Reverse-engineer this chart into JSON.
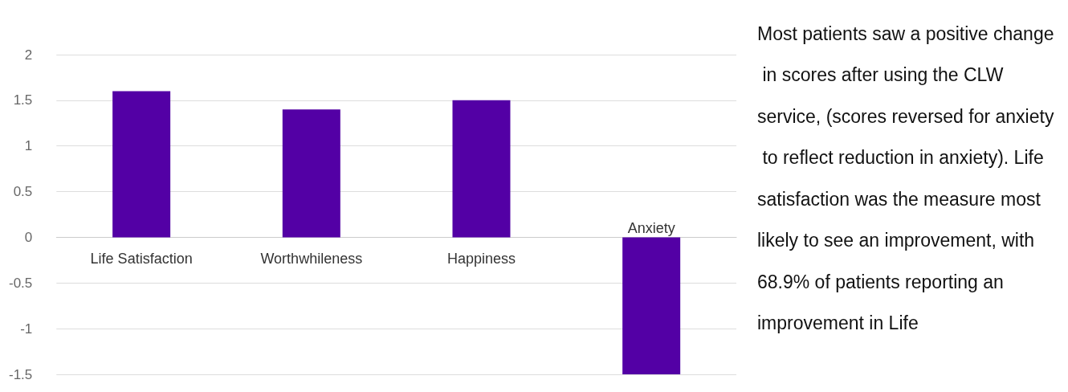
{
  "chart_data": {
    "type": "bar",
    "categories": [
      "Life Satisfaction",
      "Worthwhileness",
      "Happiness",
      "Anxiety"
    ],
    "values": [
      1.6,
      1.4,
      1.5,
      -1.5
    ],
    "color": "#5300a5",
    "ylim": [
      -1.5,
      2
    ],
    "yticks": [
      -1.5,
      -1,
      -0.5,
      0,
      0.5,
      1,
      1.5,
      2
    ],
    "grid": "y",
    "annotations": [
      "Most patients saw a positive change in scores after using the CLW service, (scores reversed for anxiety to reflect reduction in anxiety). Life satisfaction was the measure most likely to see an improvement, with 68.9% of patients reporting an improvement in Life"
    ]
  }
}
